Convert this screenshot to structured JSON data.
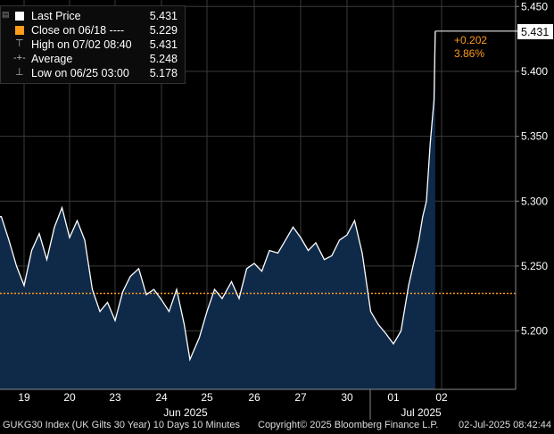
{
  "legend": {
    "rows": [
      {
        "icon": "white-square-icon",
        "label": "Last Price",
        "value": "5.431"
      },
      {
        "icon": "orange-square-icon",
        "label": "Close on 06/18 ----",
        "value": "5.229"
      },
      {
        "icon": "high-marker-icon",
        "label": "High on 07/02 08:40",
        "value": "5.431"
      },
      {
        "icon": "average-marker-icon",
        "label": "Average",
        "value": "5.248"
      },
      {
        "icon": "low-marker-icon",
        "label": "Low on 06/25 03:00",
        "value": "5.178"
      }
    ]
  },
  "change_label": "+0.202",
  "change_pct_label": "3.86%",
  "last_price_tag": "5.431",
  "footer": {
    "left": "GUKG30 Index (UK Gilts 30 Year) 10 Days 10 Minutes",
    "middle": "Copyright© 2025 Bloomberg Finance L.P.",
    "right": "02-Jul-2025 08:42:44"
  },
  "colors": {
    "background": "#000000",
    "area_fill": "#0f2a49",
    "line": "#ffffff",
    "close_line": "#ff9a1a",
    "grid": "#3a3a3a",
    "accent_text": "#ff9a1a"
  },
  "chart_data": {
    "type": "area",
    "title": "",
    "xlabel": "",
    "ylabel": "",
    "ylim": [
      5.155,
      5.455
    ],
    "yticks": [
      "5.200",
      "5.250",
      "5.300",
      "5.350",
      "5.400",
      "5.450"
    ],
    "x_tick_labels": [
      "19",
      "20",
      "23",
      "24",
      "25",
      "26",
      "27",
      "30",
      "01",
      "02"
    ],
    "month_labels": [
      "Jun 2025",
      "Jul 2025"
    ],
    "reference_line": {
      "label": "Close on 06/18",
      "value": 5.229
    },
    "series": [
      {
        "name": "Last Price",
        "x": [
          "06/19 00:00",
          "06/19 04:00",
          "06/19 08:00",
          "06/19 12:00",
          "06/19 16:00",
          "06/19 20:00",
          "06/20 00:00",
          "06/20 04:00",
          "06/20 08:00",
          "06/20 12:00",
          "06/20 16:00",
          "06/20 20:00",
          "06/23 00:00",
          "06/23 04:00",
          "06/23 08:00",
          "06/23 12:00",
          "06/23 16:00",
          "06/23 20:00",
          "06/24 00:00",
          "06/24 04:00",
          "06/24 08:00",
          "06/24 12:00",
          "06/24 16:00",
          "06/24 20:00",
          "06/25 00:00",
          "06/25 03:00",
          "06/25 08:00",
          "06/25 12:00",
          "06/25 16:00",
          "06/25 20:00",
          "06/26 00:00",
          "06/26 04:00",
          "06/26 08:00",
          "06/26 12:00",
          "06/26 16:00",
          "06/26 20:00",
          "06/27 00:00",
          "06/27 04:00",
          "06/27 08:00",
          "06/27 12:00",
          "06/27 16:00",
          "06/27 20:00",
          "06/30 00:00",
          "06/30 04:00",
          "06/30 08:00",
          "06/30 12:00",
          "06/30 16:00",
          "06/30 20:00",
          "07/01 00:00",
          "07/01 04:00",
          "07/01 08:00",
          "07/01 12:00",
          "07/01 16:00",
          "07/01 20:00",
          "07/02 00:00",
          "07/02 02:00",
          "07/02 04:00",
          "07/02 06:00",
          "07/02 08:00",
          "07/02 08:40"
        ],
        "y": [
          5.288,
          5.27,
          5.25,
          5.235,
          5.262,
          5.275,
          5.255,
          5.28,
          5.295,
          5.272,
          5.285,
          5.27,
          5.232,
          5.215,
          5.222,
          5.208,
          5.23,
          5.242,
          5.248,
          5.228,
          5.232,
          5.224,
          5.215,
          5.232,
          5.205,
          5.178,
          5.195,
          5.215,
          5.232,
          5.225,
          5.238,
          5.225,
          5.248,
          5.252,
          5.246,
          5.262,
          5.26,
          5.27,
          5.28,
          5.272,
          5.262,
          5.268,
          5.255,
          5.258,
          5.27,
          5.274,
          5.285,
          5.26,
          5.215,
          5.205,
          5.198,
          5.19,
          5.2,
          5.235,
          5.27,
          5.288,
          5.3,
          5.345,
          5.378,
          5.431
        ]
      }
    ],
    "grid": true,
    "legend_placement": "top-left"
  }
}
